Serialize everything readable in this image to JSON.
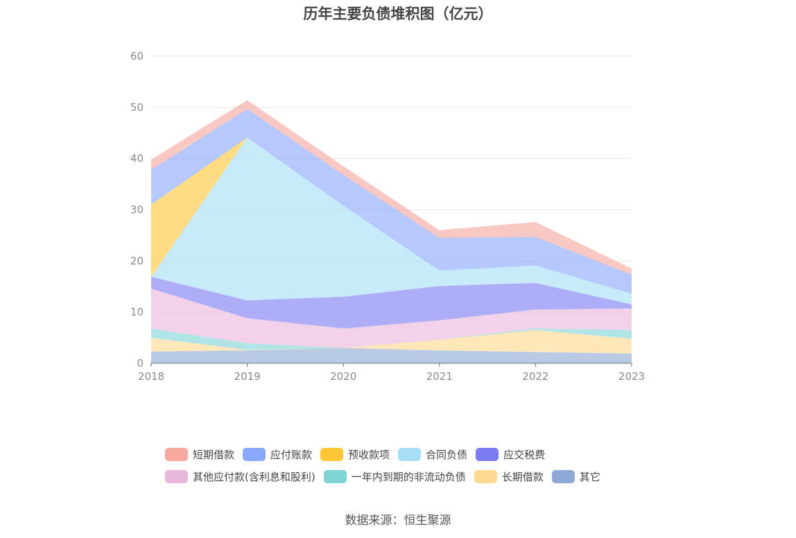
{
  "chart_data": {
    "type": "area",
    "title": "历年主要负债堆积图（亿元）",
    "x": [
      "2018",
      "2019",
      "2020",
      "2021",
      "2022",
      "2023"
    ],
    "ylim": [
      0,
      60
    ],
    "yticks": [
      0,
      10,
      20,
      30,
      40,
      50,
      60
    ],
    "grid": true,
    "legend_position": "bottom",
    "stacked": true,
    "series": [
      {
        "name": "其它",
        "color": "#8ea9d8",
        "values": [
          2.3,
          2.5,
          3.0,
          2.5,
          2.2,
          1.9
        ]
      },
      {
        "name": "长期借款",
        "color": "#ffd98f",
        "values": [
          2.7,
          0.1,
          0.0,
          2.1,
          4.3,
          2.9
        ]
      },
      {
        "name": "一年内到期的非流动负债",
        "color": "#7fd4d6",
        "values": [
          1.8,
          1.3,
          0.0,
          0.0,
          0.3,
          1.7
        ]
      },
      {
        "name": "其他应付款(含利息和股利)",
        "color": "#e8b7dc",
        "values": [
          7.8,
          4.9,
          3.8,
          3.8,
          3.7,
          4.2
        ]
      },
      {
        "name": "应交税费",
        "color": "#7b7cf2",
        "values": [
          2.3,
          3.5,
          6.2,
          6.7,
          5.2,
          0.8
        ]
      },
      {
        "name": "合同负债",
        "color": "#a7dff7",
        "values": [
          0.0,
          31.8,
          17.8,
          3.0,
          3.4,
          2.1
        ]
      },
      {
        "name": "预收款项",
        "color": "#ffc736",
        "values": [
          14.1,
          0.0,
          0.0,
          0.0,
          0.0,
          0.0
        ]
      },
      {
        "name": "应付账款",
        "color": "#89a7fb",
        "values": [
          6.8,
          5.6,
          6.0,
          6.4,
          5.6,
          3.7
        ]
      },
      {
        "name": "短期借款",
        "color": "#f7a79e",
        "values": [
          2.0,
          1.7,
          1.7,
          1.5,
          2.9,
          1.2
        ]
      }
    ]
  },
  "legend": {
    "rows": [
      [
        {
          "label": "短期借款",
          "color": "#f7a79e"
        },
        {
          "label": "应付账款",
          "color": "#89a7fb"
        },
        {
          "label": "预收款项",
          "color": "#ffc736"
        },
        {
          "label": "合同负债",
          "color": "#a7dff7"
        },
        {
          "label": "应交税费",
          "color": "#7b7cf2"
        }
      ],
      [
        {
          "label": "其他应付款(含利息和股利)",
          "color": "#e8b7dc"
        },
        {
          "label": "一年内到期的非流动负债",
          "color": "#7fd4d6"
        },
        {
          "label": "长期借款",
          "color": "#ffd98f"
        },
        {
          "label": "其它",
          "color": "#8ea9d8"
        }
      ]
    ]
  },
  "source": "数据来源：恒生聚源"
}
